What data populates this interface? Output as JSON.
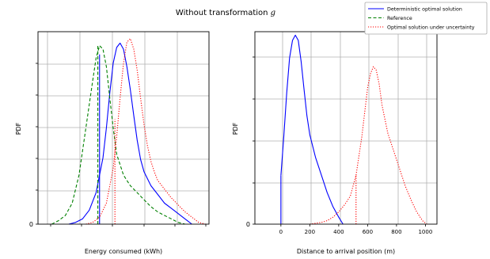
{
  "figure": {
    "title_text": "Without transformation ",
    "title_symbol": "g"
  },
  "legend": {
    "placement": "top-right",
    "entries": [
      {
        "label": "Deterministic optimal solution",
        "color": "#0000ff",
        "style": "solid"
      },
      {
        "label": "Reference",
        "color": "#008000",
        "style": "dashed"
      },
      {
        "label": "Optimal solution under uncertainty",
        "color": "#ff0000",
        "style": "dotted"
      }
    ]
  },
  "chart_data": [
    {
      "type": "line",
      "xlabel": "Energy consumed (kWh)",
      "ylabel": "PDF",
      "x_tick_labels": [],
      "y_tick_labels": [
        "0"
      ],
      "xlim": [
        0,
        100
      ],
      "ylim": [
        0,
        1.1
      ],
      "grid": true,
      "series": [
        {
          "name": "Deterministic optimal solution",
          "color": "#0000ff",
          "style": "solid",
          "x": [
            18,
            22,
            26,
            30,
            34,
            38,
            40,
            42,
            44,
            46,
            48,
            50,
            52,
            54,
            56,
            58,
            60,
            62,
            66,
            70,
            74,
            78,
            82,
            86,
            88,
            90
          ],
          "y": [
            0.0,
            0.01,
            0.03,
            0.08,
            0.18,
            0.38,
            0.55,
            0.75,
            0.92,
            1.01,
            1.035,
            1.0,
            0.9,
            0.77,
            0.62,
            0.48,
            0.37,
            0.3,
            0.22,
            0.17,
            0.12,
            0.09,
            0.06,
            0.03,
            0.015,
            0.0
          ],
          "vline": {
            "x": 36,
            "ymax": 0.97
          }
        },
        {
          "name": "Reference",
          "color": "#008000",
          "style": "dashed",
          "x": [
            8,
            12,
            16,
            20,
            24,
            28,
            32,
            34,
            36,
            38,
            40,
            42,
            44,
            46,
            50,
            54,
            58,
            62,
            66,
            70,
            74,
            78,
            82,
            86
          ],
          "y": [
            0.0,
            0.02,
            0.05,
            0.12,
            0.28,
            0.55,
            0.82,
            0.95,
            1.02,
            1.0,
            0.9,
            0.72,
            0.55,
            0.4,
            0.28,
            0.22,
            0.18,
            0.14,
            0.1,
            0.07,
            0.05,
            0.03,
            0.01,
            0.0
          ],
          "vline": {
            "x": 35,
            "ymax": 1.02
          }
        },
        {
          "name": "Optimal solution under uncertainty",
          "color": "#ff0000",
          "style": "dotted",
          "x": [
            28,
            32,
            36,
            40,
            44,
            46,
            48,
            50,
            52,
            54,
            56,
            58,
            60,
            62,
            64,
            66,
            68,
            70,
            74,
            78,
            82,
            86,
            90,
            94,
            98
          ],
          "y": [
            0.0,
            0.01,
            0.04,
            0.12,
            0.32,
            0.5,
            0.72,
            0.92,
            1.04,
            1.06,
            1.0,
            0.88,
            0.72,
            0.57,
            0.45,
            0.36,
            0.3,
            0.25,
            0.2,
            0.15,
            0.11,
            0.07,
            0.04,
            0.01,
            0.0
          ],
          "vline": {
            "x": 45,
            "ymax": 0.6
          }
        }
      ]
    },
    {
      "type": "line",
      "xlabel": "Distance to arrival position (m)",
      "ylabel": "PDF",
      "x_tick_labels": [
        "0",
        "200",
        "400",
        "600",
        "800",
        "1000"
      ],
      "x_ticks": [
        0,
        200,
        400,
        600,
        800,
        1000
      ],
      "y_tick_labels": [
        "0"
      ],
      "xlim": [
        -180,
        1080
      ],
      "ylim": [
        0,
        1.1
      ],
      "grid": true,
      "series": [
        {
          "name": "Deterministic optimal solution",
          "color": "#0000ff",
          "style": "solid",
          "x": [
            0,
            20,
            40,
            60,
            80,
            100,
            120,
            140,
            160,
            180,
            200,
            240,
            280,
            320,
            360,
            400,
            430
          ],
          "y": [
            0.28,
            0.5,
            0.75,
            0.95,
            1.05,
            1.08,
            1.05,
            0.93,
            0.77,
            0.62,
            0.51,
            0.38,
            0.28,
            0.18,
            0.1,
            0.04,
            0.0
          ],
          "vline": {
            "x": 0,
            "ymax": 0.28
          }
        },
        {
          "name": "Optimal solution under uncertainty",
          "color": "#ff0000",
          "style": "dotted",
          "x": [
            200,
            240,
            280,
            320,
            360,
            400,
            440,
            480,
            520,
            560,
            600,
            620,
            640,
            660,
            680,
            700,
            740,
            780,
            820,
            860,
            900,
            940,
            980,
            1010
          ],
          "y": [
            0.0,
            0.005,
            0.01,
            0.02,
            0.04,
            0.07,
            0.11,
            0.16,
            0.28,
            0.5,
            0.78,
            0.86,
            0.9,
            0.88,
            0.8,
            0.68,
            0.52,
            0.42,
            0.32,
            0.22,
            0.14,
            0.07,
            0.02,
            0.0
          ],
          "vline": {
            "x": 520,
            "ymax": 0.28
          }
        }
      ]
    }
  ]
}
